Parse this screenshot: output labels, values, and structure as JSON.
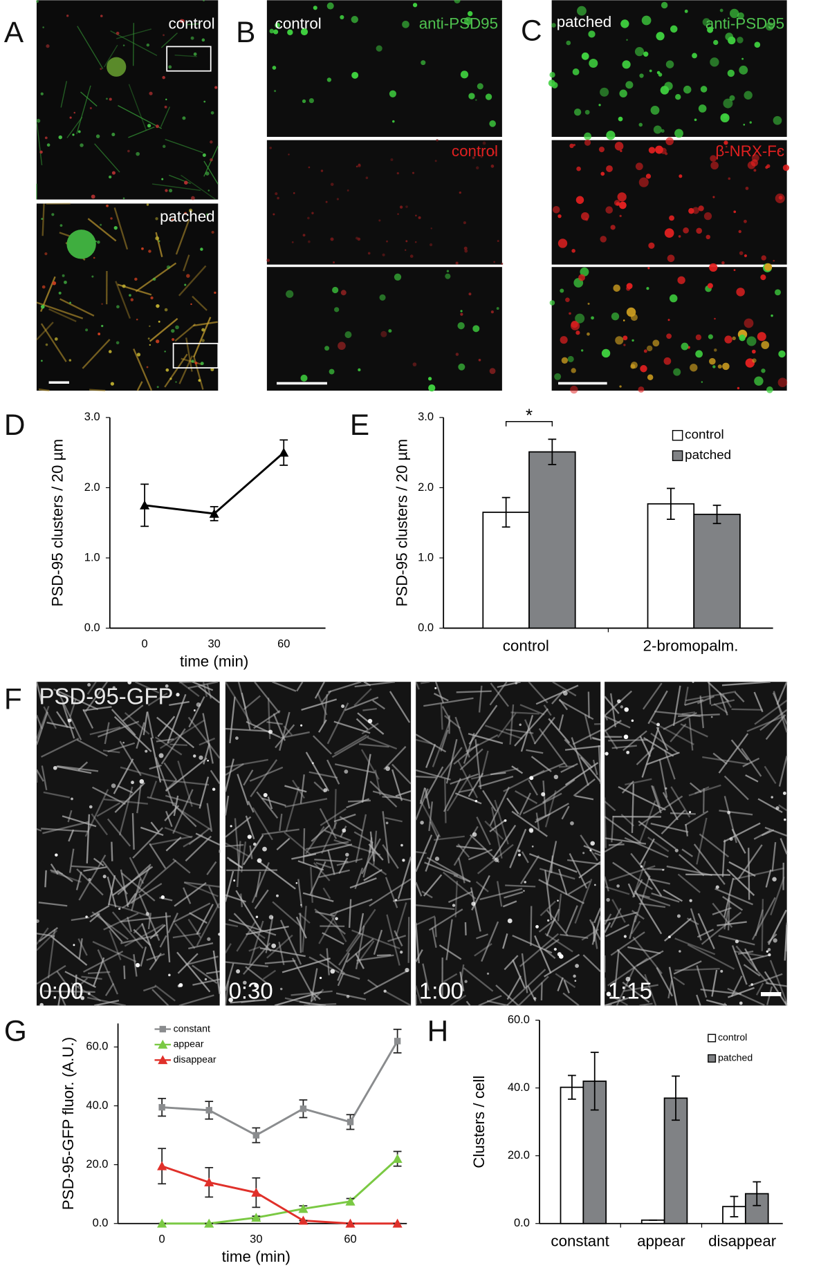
{
  "figure": {
    "panel_labels": [
      "A",
      "B",
      "C",
      "D",
      "E",
      "F",
      "G",
      "H"
    ],
    "A": {
      "top": "control",
      "bottom": "patched"
    },
    "B": {
      "top_left": "control",
      "top_right": "anti-PSD95",
      "middle": "control"
    },
    "C": {
      "top_left": "patched",
      "top_right": "anti-PSD95",
      "middle": "β-NRX-Fc"
    },
    "F": {
      "title": "PSD-95-GFP",
      "timestamps": [
        "0:00",
        "0:30",
        "1:00",
        "1:15"
      ]
    }
  },
  "chart_data": [
    {
      "type": "line",
      "x": [
        0,
        30,
        60
      ],
      "values": [
        1.75,
        1.63,
        2.5
      ],
      "errors": [
        0.3,
        0.1,
        0.18
      ],
      "color": "#000000",
      "marker": "triangle",
      "xlim": [
        -15,
        78
      ],
      "xticks": [
        0,
        30,
        60
      ],
      "ylim": [
        0,
        3
      ],
      "yticks": [
        {
          "value": 0,
          "label": "0.0"
        },
        {
          "value": 1,
          "label": "1.0"
        },
        {
          "value": 2,
          "label": "2.0"
        },
        {
          "value": 3,
          "label": "3.0"
        }
      ],
      "xlabel": "time (min)",
      "ylabel": "PSD-95 clusters / 20 µm"
    },
    {
      "type": "bar",
      "categories": [
        "control",
        "2-bromopalm."
      ],
      "series": [
        {
          "name": "control",
          "color": "#ffffff",
          "values": [
            1.65,
            1.77
          ],
          "errors": [
            0.21,
            0.22
          ]
        },
        {
          "name": "patched",
          "color": "#808285",
          "values": [
            2.51,
            1.62
          ],
          "errors": [
            0.18,
            0.13
          ]
        }
      ],
      "ylim": [
        0,
        3
      ],
      "yticks": [
        {
          "value": 0,
          "label": "0.0"
        },
        {
          "value": 1,
          "label": "1.0"
        },
        {
          "value": 2,
          "label": "2.0"
        },
        {
          "value": 3,
          "label": "3.0"
        }
      ],
      "ylabel": "PSD-95 clusters / 20 µm",
      "legend": "upper right",
      "annotation": "*"
    },
    {
      "type": "line",
      "x": [
        0,
        15,
        30,
        45,
        60,
        75
      ],
      "series": [
        {
          "name": "constant",
          "color": "#8a8c8e",
          "marker": "square",
          "values": [
            39.5,
            38.5,
            30,
            39,
            34.5,
            62
          ],
          "errors": [
            3,
            3,
            2.5,
            3,
            2.5,
            4
          ]
        },
        {
          "name": "appear",
          "color": "#7ac943",
          "marker": "triangle",
          "values": [
            0,
            0,
            2,
            5,
            7.5,
            22
          ],
          "errors": [
            0,
            0,
            0.5,
            1,
            1,
            2.5
          ]
        },
        {
          "name": "disappear",
          "color": "#e0302a",
          "marker": "triangle",
          "values": [
            19.5,
            14,
            10.5,
            1,
            0,
            0
          ],
          "errors": [
            6,
            5,
            5,
            0,
            0,
            0
          ]
        }
      ],
      "xlim": [
        -14,
        78
      ],
      "xticks": [
        0,
        30,
        60
      ],
      "ylim": [
        0,
        68
      ],
      "yticks": [
        {
          "value": 0,
          "label": "0.0"
        },
        {
          "value": 20,
          "label": "20.0"
        },
        {
          "value": 40,
          "label": "40.0"
        },
        {
          "value": 60,
          "label": "60.0"
        }
      ],
      "xlabel": "time (min)",
      "ylabel": "PSD-95-GFP fluor. (A.U.)",
      "legend": "upper left"
    },
    {
      "type": "bar",
      "categories": [
        "constant",
        "appear",
        "disappear"
      ],
      "series": [
        {
          "name": "control",
          "color": "#ffffff",
          "values": [
            40.2,
            1,
            5
          ],
          "errors": [
            3.5,
            0,
            3
          ]
        },
        {
          "name": "patched",
          "color": "#808285",
          "values": [
            42,
            37,
            8.8
          ],
          "errors": [
            8.5,
            6.5,
            3.5
          ]
        }
      ],
      "ylim": [
        0,
        60
      ],
      "yticks": [
        {
          "value": 0,
          "label": "0.0"
        },
        {
          "value": 20,
          "label": "20.0"
        },
        {
          "value": 40,
          "label": "40.0"
        },
        {
          "value": 60,
          "label": "60.0"
        }
      ],
      "ylabel": "Clusters / cell",
      "legend": "upper right"
    }
  ]
}
